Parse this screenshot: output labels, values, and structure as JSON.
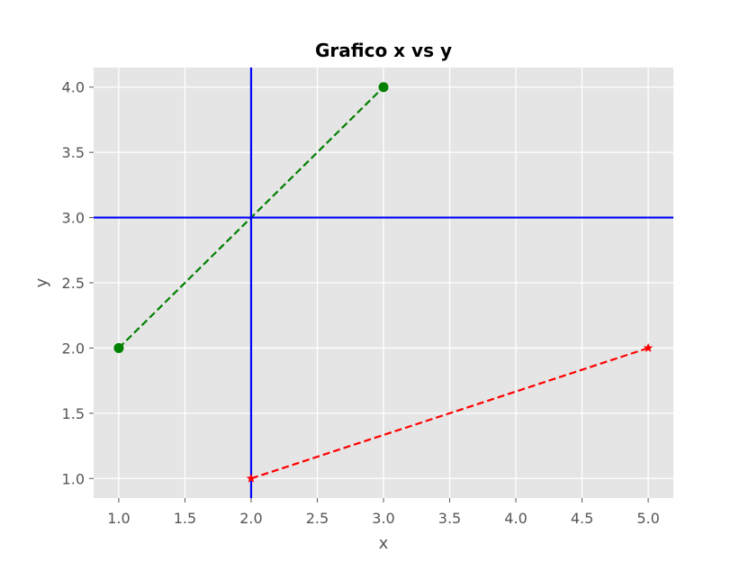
{
  "chart_data": {
    "type": "line",
    "title": "Grafico x vs y",
    "xlabel": "x",
    "ylabel": "y",
    "xlim": [
      0.81,
      5.19
    ],
    "ylim": [
      0.85,
      4.15
    ],
    "grid": true,
    "x_ticks": [
      "1.0",
      "1.5",
      "2.0",
      "2.5",
      "3.0",
      "3.5",
      "4.0",
      "4.5",
      "5.0"
    ],
    "y_ticks": [
      "1.0",
      "1.5",
      "2.0",
      "2.5",
      "3.0",
      "3.5",
      "4.0"
    ],
    "series": [
      {
        "x": [
          1,
          3
        ],
        "y": [
          2,
          4
        ],
        "color": "#008000",
        "linestyle": "dashed",
        "marker": "circle"
      },
      {
        "x": [
          2,
          5
        ],
        "y": [
          1,
          2
        ],
        "color": "#ff0000",
        "linestyle": "dashed",
        "marker": "star"
      }
    ],
    "reference_lines": [
      {
        "orientation": "vertical",
        "x": 2,
        "color": "#0000ff"
      },
      {
        "orientation": "horizontal",
        "y": 3,
        "color": "#0000ff"
      }
    ],
    "colors": {
      "plot_background": "#e5e5e5",
      "grid": "#ffffff",
      "text": "#555555"
    }
  }
}
